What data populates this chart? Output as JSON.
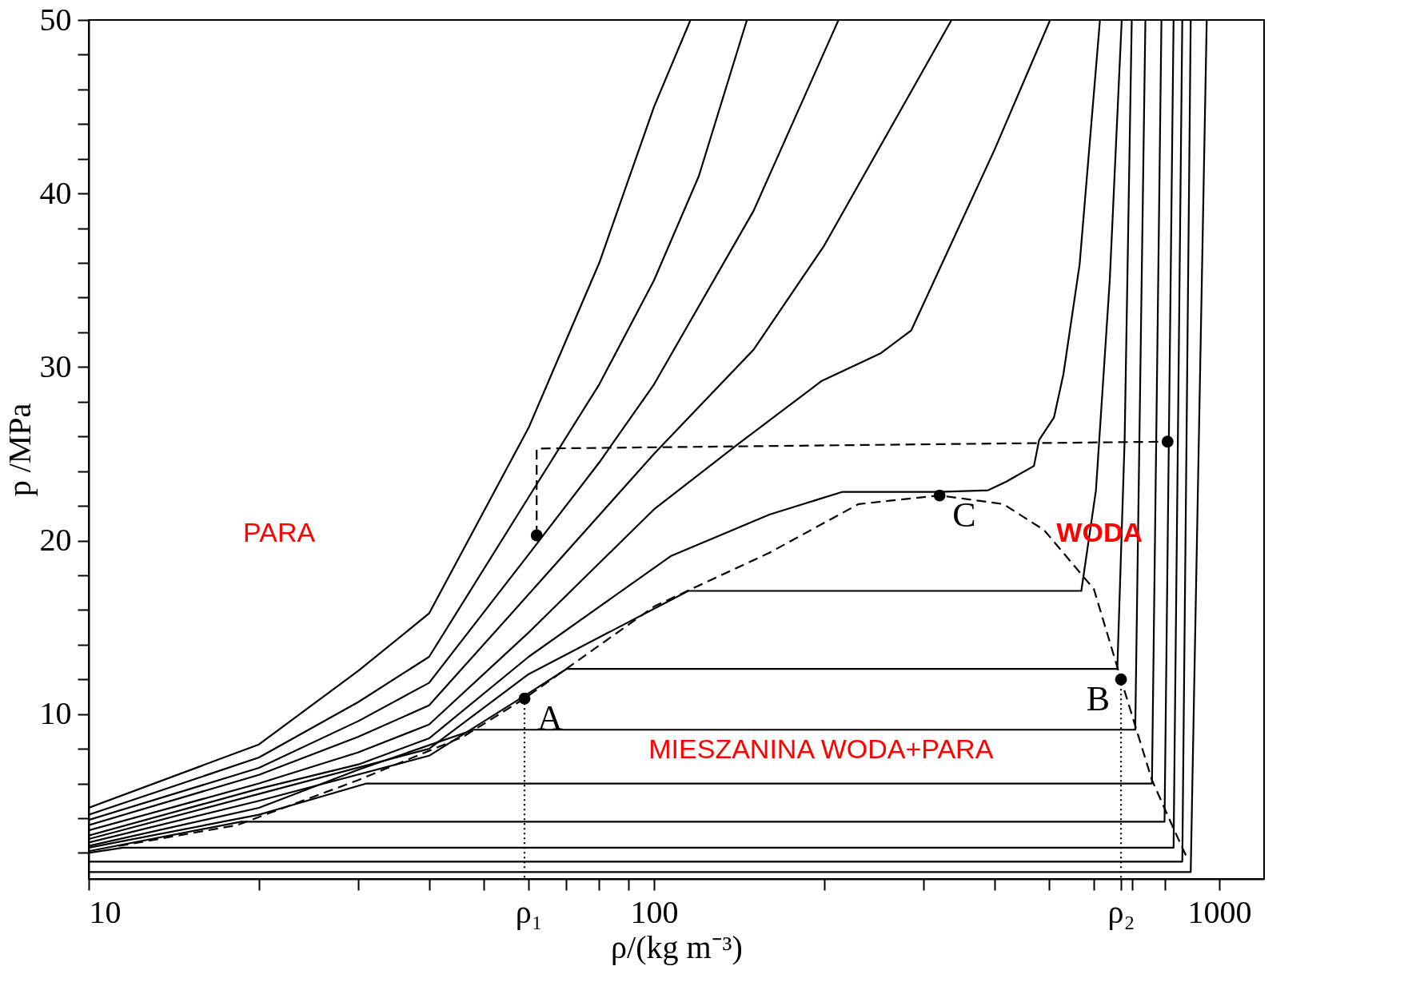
{
  "chart_data": {
    "type": "line",
    "xlabel": "ρ/(kg m⁻³)",
    "ylabel": "p /MPa",
    "log": "x",
    "grid": false,
    "xlim": [
      10,
      1200
    ],
    "ylim": [
      0.5,
      50
    ],
    "xticks": [
      10,
      {
        "value": 20,
        "label": null
      },
      {
        "value": 30,
        "label": null
      },
      {
        "value": 40,
        "label": null
      },
      {
        "value": 50,
        "label": null
      },
      {
        "value": 60,
        "label": "ρ₁"
      },
      {
        "value": 70,
        "label": null
      },
      {
        "value": 80,
        "label": null
      },
      {
        "value": 90,
        "label": null
      },
      100,
      {
        "value": 200,
        "label": null
      },
      {
        "value": 300,
        "label": null
      },
      {
        "value": 400,
        "label": null
      },
      {
        "value": 500,
        "label": null
      },
      {
        "value": 600,
        "label": null
      },
      {
        "value": 670,
        "label": "ρ₂"
      },
      {
        "value": 700,
        "label": null
      },
      {
        "value": 800,
        "label": null
      },
      1000
    ],
    "yticks": [
      {
        "value": 2,
        "label": null
      },
      {
        "value": 4,
        "label": null
      },
      {
        "value": 6,
        "label": null
      },
      {
        "value": 8,
        "label": null
      },
      10,
      {
        "value": 12,
        "label": null
      },
      {
        "value": 14,
        "label": null
      },
      {
        "value": 16,
        "label": null
      },
      {
        "value": 18,
        "label": null
      },
      20,
      {
        "value": 22,
        "label": null
      },
      {
        "value": 24,
        "label": null
      },
      {
        "value": 26,
        "label": null
      },
      {
        "value": 28,
        "label": null
      },
      30,
      {
        "value": 32,
        "label": null
      },
      {
        "value": 34,
        "label": null
      },
      {
        "value": 36,
        "label": null
      },
      {
        "value": 38,
        "label": null
      },
      40,
      {
        "value": 42,
        "label": null
      },
      {
        "value": 44,
        "label": null
      },
      {
        "value": 46,
        "label": null
      },
      {
        "value": 48,
        "label": null
      },
      50
    ],
    "series": [
      {
        "type": "line",
        "color": "#000000",
        "line_style": "solid",
        "x": [
          10,
          20,
          30,
          40,
          60,
          80,
          100,
          116
        ],
        "values": [
          4.6,
          8.25,
          12.5,
          15.8,
          26.5,
          36,
          45,
          50
        ]
      },
      {
        "type": "line",
        "color": "#000000",
        "line_style": "solid",
        "x": [
          10,
          20,
          30,
          40,
          60,
          80,
          100,
          120,
          146
        ],
        "values": [
          4.2,
          7.5,
          10.7,
          13.3,
          22.5,
          29,
          35,
          41,
          50
        ]
      },
      {
        "type": "line",
        "color": "#000000",
        "line_style": "solid",
        "x": [
          10,
          20,
          30,
          40,
          60,
          80,
          100,
          150,
          212
        ],
        "values": [
          3.9,
          6.9,
          9.6,
          11.8,
          19.2,
          24.5,
          29,
          39,
          50
        ]
      },
      {
        "type": "line",
        "color": "#000000",
        "line_style": "solid",
        "x": [
          10,
          20,
          30,
          40,
          60,
          100,
          150,
          200,
          336
        ],
        "values": [
          3.6,
          6.5,
          8.7,
          10.5,
          16.9,
          25,
          31,
          37,
          50
        ]
      },
      {
        "type": "line",
        "color": "#000000",
        "line_style": "solid",
        "x": [
          10,
          20,
          30,
          40,
          60,
          100,
          140,
          198,
          252,
          285,
          400,
          502
        ],
        "values": [
          3.3,
          6.0,
          7.8,
          9.4,
          14.7,
          21.8,
          25.5,
          29.2,
          30.8,
          32.1,
          42.5,
          50
        ]
      },
      {
        "type": "line",
        "color": "#000000",
        "line_style": "solid",
        "x": [
          10,
          20,
          30,
          40,
          60,
          107,
          160,
          215,
          320,
          390,
          420,
          470,
          480,
          510,
          530,
          566,
          615
        ],
        "values": [
          3.0,
          5.7,
          7.1,
          8.6,
          13.3,
          19.1,
          21.5,
          22.8,
          22.8,
          22.9,
          23.4,
          24.3,
          25.8,
          27.1,
          29.6,
          35.9,
          50
        ]
      },
      {
        "type": "line",
        "color": "#000000",
        "line_style": "solid",
        "x": [
          10,
          20,
          40,
          60,
          115,
          570,
          605,
          640,
          672
        ],
        "values": [
          2.8,
          5.4,
          8.0,
          12.3,
          17.1,
          17.1,
          22.9,
          35,
          50
        ]
      },
      {
        "type": "line",
        "color": "#000000",
        "line_style": "solid",
        "x": [
          10,
          20,
          40,
          60,
          70,
          660,
          680,
          700
        ],
        "values": [
          2.6,
          5.0,
          7.6,
          11.2,
          12.6,
          12.6,
          25.8,
          50
        ]
      },
      {
        "type": "line",
        "color": "#000000",
        "line_style": "solid",
        "x": [
          10,
          20,
          30,
          48,
          710,
          740
        ],
        "values": [
          2.4,
          4.6,
          6.8,
          9.1,
          9.1,
          50
        ]
      },
      {
        "type": "line",
        "color": "#000000",
        "line_style": "solid",
        "x": [
          10,
          20,
          31,
          760,
          790
        ],
        "values": [
          2.3,
          4.2,
          6.0,
          6.0,
          50
        ]
      },
      {
        "type": "line",
        "color": "#000000",
        "line_style": "solid",
        "x": [
          10,
          18.6,
          800,
          830
        ],
        "values": [
          2.1,
          3.8,
          3.8,
          50
        ]
      },
      {
        "type": "line",
        "color": "#000000",
        "line_style": "solid",
        "x": [
          10,
          11.5,
          830,
          860
        ],
        "values": [
          2.0,
          2.3,
          2.3,
          50
        ]
      },
      {
        "type": "line",
        "color": "#000000",
        "line_style": "solid",
        "x": [
          10,
          860,
          890
        ],
        "values": [
          1.5,
          1.5,
          50
        ]
      },
      {
        "type": "line",
        "color": "#000000",
        "line_style": "solid",
        "x": [
          10,
          890,
          950
        ],
        "values": [
          0.9,
          0.9,
          50
        ]
      },
      {
        "type": "line",
        "color": "#000000",
        "line_style": "dashed",
        "x": [
          11.3,
          18.3,
          30,
          46,
          59,
          100,
          160,
          230,
          320,
          415,
          490,
          600,
          670,
          760,
          830,
          880
        ],
        "values": [
          2.4,
          3.6,
          6.2,
          8.7,
          10.9,
          16.2,
          19.3,
          22.1,
          22.6,
          22.1,
          20.6,
          17.2,
          12.0,
          6.2,
          3.4,
          1.6
        ]
      },
      {
        "type": "line",
        "color": "#000000",
        "line_style": "dashed",
        "x": [
          62,
          62,
          810
        ],
        "values": [
          20.3,
          25.3,
          25.7
        ]
      },
      {
        "type": "line",
        "color": "#000000",
        "line_style": "dotted",
        "x": [
          59,
          59
        ],
        "values": [
          10.9,
          0.5
        ]
      },
      {
        "type": "line",
        "color": "#000000",
        "line_style": "dotted",
        "x": [
          670,
          670
        ],
        "values": [
          12.0,
          0.5
        ]
      },
      {
        "type": "scatter",
        "color": "#000000",
        "marker": "circle",
        "x": [
          62,
          810,
          59,
          670,
          320
        ],
        "values": [
          20.3,
          25.7,
          10.9,
          12.0,
          22.6
        ]
      }
    ],
    "annotations": [
      "PARA",
      "WODA",
      "MIESZANINA WODA+PARA",
      {
        "text": "A",
        "x": 59,
        "y": 10.9
      },
      {
        "text": "B",
        "x": 670,
        "y": 12.0
      },
      {
        "text": "C",
        "x": 320,
        "y": 22.6
      }
    ]
  }
}
